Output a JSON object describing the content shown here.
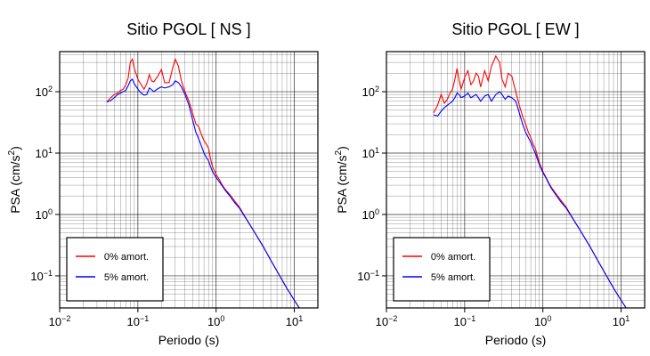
{
  "chart_data": [
    {
      "type": "line",
      "title": "Sitio PGOL [ NS ]",
      "xlabel": "Periodo (s)",
      "ylabel_main": "PSA (cm/s",
      "ylabel_sup": "2",
      "ylabel_close": ")",
      "x_scale": "log",
      "y_scale": "log",
      "xlim": [
        0.01,
        20
      ],
      "ylim": [
        0.03,
        450
      ],
      "grid": true,
      "legend_position": "bottom-left",
      "x_ticks": [
        {
          "value": 0.01,
          "base": "10",
          "exp": "−2"
        },
        {
          "value": 0.1,
          "base": "10",
          "exp": "−1"
        },
        {
          "value": 1,
          "base": "10",
          "exp": "0"
        },
        {
          "value": 10,
          "base": "10",
          "exp": "1"
        }
      ],
      "y_ticks": [
        {
          "value": 0.1,
          "base": "10",
          "exp": "−1"
        },
        {
          "value": 1,
          "base": "10",
          "exp": "0"
        },
        {
          "value": 10,
          "base": "10",
          "exp": "1"
        },
        {
          "value": 100,
          "base": "10",
          "exp": "2"
        }
      ],
      "series": [
        {
          "name": "0% amort.",
          "color": "#ff0000",
          "x": [
            0.04,
            0.045,
            0.05,
            0.055,
            0.06,
            0.065,
            0.07,
            0.075,
            0.08,
            0.085,
            0.09,
            0.1,
            0.11,
            0.12,
            0.13,
            0.14,
            0.15,
            0.16,
            0.18,
            0.2,
            0.22,
            0.25,
            0.28,
            0.3,
            0.33,
            0.36,
            0.4,
            0.45,
            0.5,
            0.55,
            0.6,
            0.65,
            0.7,
            0.75,
            0.8,
            0.85,
            0.9,
            1.0,
            1.1,
            1.2,
            1.3,
            1.5,
            1.7,
            2.0,
            2.5,
            3,
            4,
            5,
            6,
            8,
            10,
            12,
            15
          ],
          "y": [
            68,
            80,
            90,
            95,
            105,
            110,
            130,
            165,
            300,
            340,
            240,
            160,
            130,
            110,
            135,
            190,
            150,
            145,
            180,
            230,
            140,
            140,
            250,
            340,
            260,
            150,
            100,
            70,
            45,
            30,
            27,
            20,
            16,
            14,
            12,
            8,
            6,
            4.5,
            3.7,
            3.0,
            2.6,
            2.1,
            1.7,
            1.3,
            0.8,
            0.55,
            0.3,
            0.18,
            0.12,
            0.063,
            0.04,
            0.028,
            0.018
          ]
        },
        {
          "name": "5% amort.",
          "color": "#0000ff",
          "x": [
            0.04,
            0.045,
            0.05,
            0.055,
            0.06,
            0.065,
            0.07,
            0.075,
            0.08,
            0.085,
            0.09,
            0.1,
            0.11,
            0.12,
            0.13,
            0.14,
            0.15,
            0.16,
            0.18,
            0.2,
            0.22,
            0.25,
            0.28,
            0.3,
            0.33,
            0.36,
            0.4,
            0.45,
            0.5,
            0.55,
            0.6,
            0.65,
            0.7,
            0.75,
            0.8,
            0.85,
            0.9,
            1.0,
            1.1,
            1.2,
            1.3,
            1.5,
            1.7,
            2.0,
            2.5,
            3,
            4,
            5,
            6,
            8,
            10,
            12,
            15
          ],
          "y": [
            68,
            72,
            80,
            90,
            95,
            100,
            105,
            125,
            150,
            160,
            135,
            110,
            95,
            88,
            90,
            115,
            108,
            100,
            112,
            120,
            115,
            120,
            130,
            150,
            140,
            120,
            90,
            60,
            35,
            22,
            17,
            13,
            10,
            8.5,
            7.5,
            6,
            5,
            4,
            3.4,
            2.9,
            2.5,
            2.0,
            1.6,
            1.25,
            0.8,
            0.55,
            0.3,
            0.18,
            0.12,
            0.063,
            0.04,
            0.028,
            0.018
          ]
        }
      ]
    },
    {
      "type": "line",
      "title": "Sitio PGOL [ EW ]",
      "xlabel": "Periodo (s)",
      "ylabel_main": "PSA (cm/s",
      "ylabel_sup": "2",
      "ylabel_close": ")",
      "x_scale": "log",
      "y_scale": "log",
      "xlim": [
        0.01,
        20
      ],
      "ylim": [
        0.03,
        450
      ],
      "grid": true,
      "legend_position": "bottom-left",
      "x_ticks": [
        {
          "value": 0.01,
          "base": "10",
          "exp": "−2"
        },
        {
          "value": 0.1,
          "base": "10",
          "exp": "−1"
        },
        {
          "value": 1,
          "base": "10",
          "exp": "0"
        },
        {
          "value": 10,
          "base": "10",
          "exp": "1"
        }
      ],
      "y_ticks": [
        {
          "value": 0.1,
          "base": "10",
          "exp": "−1"
        },
        {
          "value": 1,
          "base": "10",
          "exp": "0"
        },
        {
          "value": 10,
          "base": "10",
          "exp": "1"
        },
        {
          "value": 100,
          "base": "10",
          "exp": "2"
        }
      ],
      "series": [
        {
          "name": "0% amort.",
          "color": "#ff0000",
          "x": [
            0.04,
            0.045,
            0.05,
            0.055,
            0.06,
            0.065,
            0.07,
            0.075,
            0.08,
            0.085,
            0.09,
            0.1,
            0.11,
            0.12,
            0.13,
            0.14,
            0.15,
            0.16,
            0.18,
            0.2,
            0.22,
            0.25,
            0.28,
            0.3,
            0.33,
            0.36,
            0.4,
            0.45,
            0.5,
            0.55,
            0.6,
            0.65,
            0.7,
            0.75,
            0.8,
            0.85,
            0.9,
            1.0,
            1.1,
            1.2,
            1.3,
            1.5,
            1.7,
            2.0,
            2.5,
            3,
            4,
            5,
            6,
            8,
            10,
            12,
            15
          ],
          "y": [
            45,
            60,
            90,
            65,
            75,
            95,
            110,
            160,
            240,
            150,
            110,
            170,
            220,
            130,
            150,
            200,
            180,
            120,
            220,
            150,
            260,
            380,
            300,
            160,
            120,
            200,
            180,
            100,
            60,
            40,
            30,
            22,
            18,
            14,
            12,
            9,
            7,
            5,
            4,
            3.2,
            2.7,
            2.1,
            1.7,
            1.3,
            0.8,
            0.55,
            0.3,
            0.18,
            0.12,
            0.063,
            0.04,
            0.028,
            0.018
          ]
        },
        {
          "name": "5% amort.",
          "color": "#0000ff",
          "x": [
            0.04,
            0.045,
            0.05,
            0.055,
            0.06,
            0.065,
            0.07,
            0.075,
            0.08,
            0.085,
            0.09,
            0.1,
            0.11,
            0.12,
            0.13,
            0.14,
            0.15,
            0.16,
            0.18,
            0.2,
            0.22,
            0.25,
            0.28,
            0.3,
            0.33,
            0.36,
            0.4,
            0.45,
            0.5,
            0.55,
            0.6,
            0.65,
            0.7,
            0.75,
            0.8,
            0.85,
            0.9,
            1.0,
            1.1,
            1.2,
            1.3,
            1.5,
            1.7,
            2.0,
            2.5,
            3,
            4,
            5,
            6,
            8,
            10,
            12,
            15
          ],
          "y": [
            42,
            40,
            48,
            55,
            60,
            65,
            70,
            80,
            95,
            90,
            80,
            85,
            95,
            80,
            85,
            90,
            80,
            70,
            85,
            90,
            70,
            90,
            100,
            90,
            75,
            85,
            80,
            70,
            45,
            30,
            22,
            18,
            15,
            12,
            10,
            8,
            6.5,
            4.8,
            3.9,
            3.1,
            2.6,
            2.0,
            1.6,
            1.25,
            0.8,
            0.55,
            0.3,
            0.18,
            0.12,
            0.063,
            0.04,
            0.028,
            0.018
          ]
        }
      ]
    }
  ]
}
